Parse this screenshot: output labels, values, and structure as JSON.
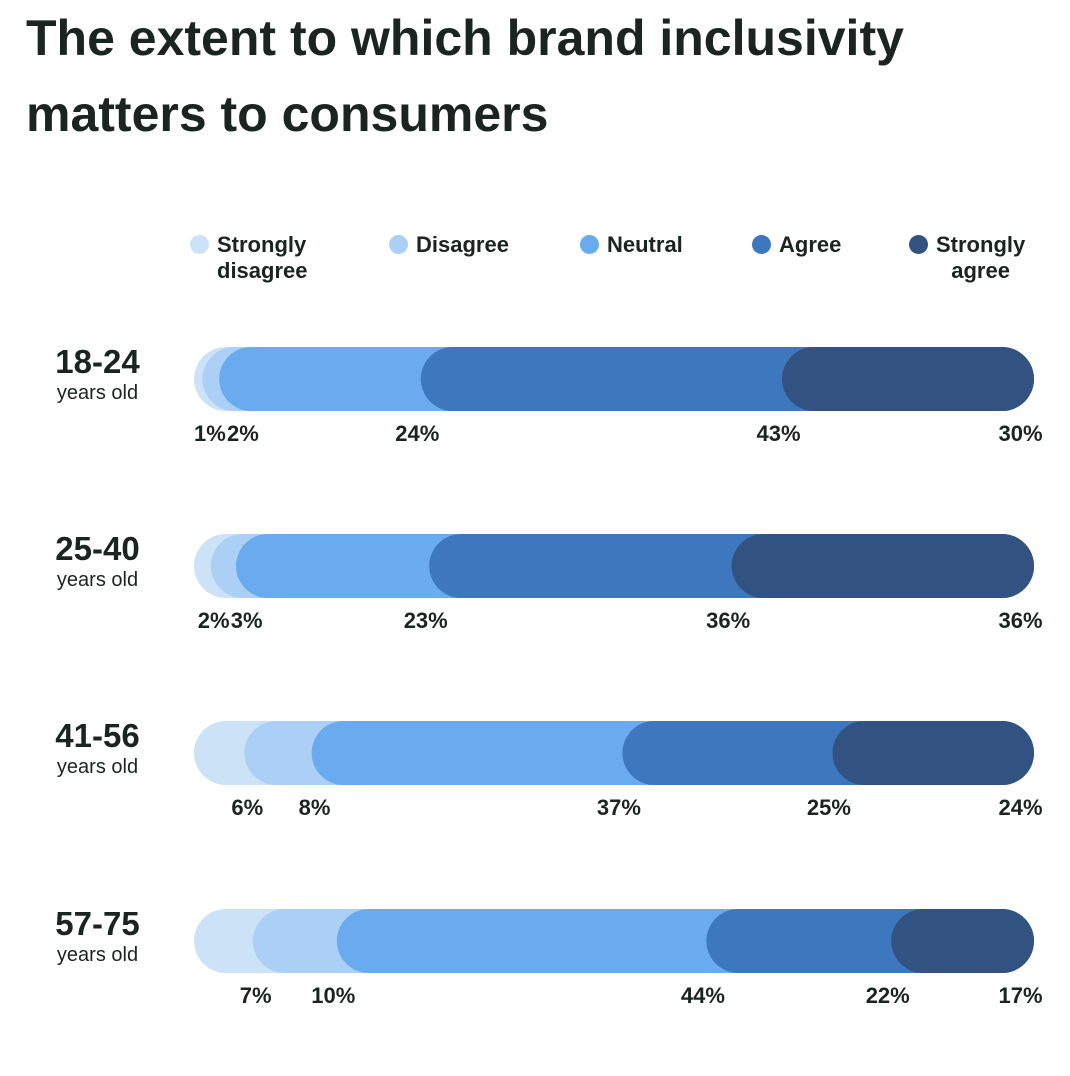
{
  "chart_data": {
    "type": "bar",
    "orientation": "horizontal",
    "stacked": true,
    "title": "The extent to which brand inclusivity matters to consumers",
    "legend_position": "top",
    "categories": [
      {
        "age": "18-24",
        "sub": "years old"
      },
      {
        "age": "25-40",
        "sub": "years old"
      },
      {
        "age": "41-56",
        "sub": "years old"
      },
      {
        "age": "57-75",
        "sub": "years old"
      }
    ],
    "series": [
      {
        "name": "Strongly\ndisagree",
        "color": "#cce3f7",
        "values": [
          1,
          2,
          6,
          7
        ]
      },
      {
        "name": "Disagree",
        "color": "#acd0f5",
        "values": [
          2,
          3,
          8,
          10
        ]
      },
      {
        "name": "Neutral",
        "color": "#6aaaef",
        "values": [
          24,
          23,
          37,
          44
        ]
      },
      {
        "name": "Agree",
        "color": "#3d78bf",
        "values": [
          43,
          36,
          25,
          22
        ]
      },
      {
        "name": "Strongly\nagree",
        "color": "#325382",
        "values": [
          30,
          36,
          24,
          17
        ]
      }
    ],
    "value_suffix": "%"
  }
}
